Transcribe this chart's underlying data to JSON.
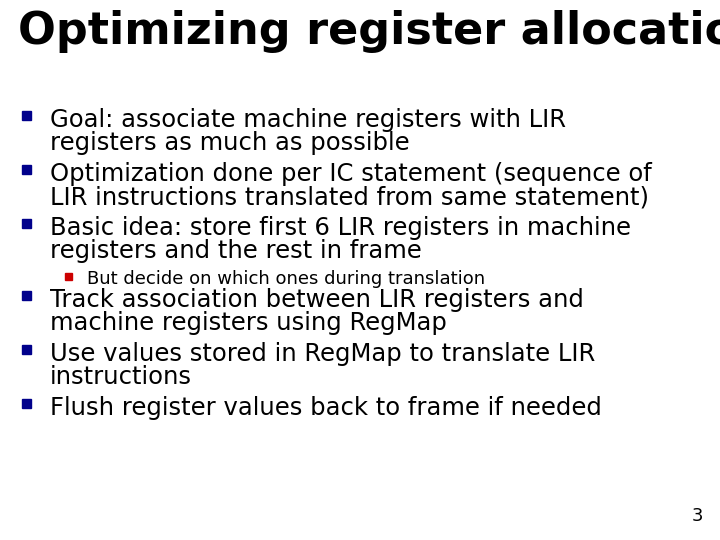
{
  "title": "Optimizing register allocation",
  "title_fontsize": 32,
  "title_color": "#000000",
  "background_color": "#ffffff",
  "slide_number": "3",
  "bullet_color": "#00008B",
  "sub_bullet_color": "#CC0000",
  "text_color": "#000000",
  "bullets": [
    {
      "level": 1,
      "lines": [
        "Goal: associate machine registers with LIR",
        "registers as much as possible"
      ],
      "fontsize": 17.5
    },
    {
      "level": 1,
      "lines": [
        "Optimization done per IC statement (sequence of",
        "LIR instructions translated from same statement)"
      ],
      "fontsize": 17.5
    },
    {
      "level": 1,
      "lines": [
        "Basic idea: store first 6 LIR registers in machine",
        "registers and the rest in frame"
      ],
      "fontsize": 17.5
    },
    {
      "level": 2,
      "lines": [
        "But decide on which ones during translation"
      ],
      "fontsize": 13
    },
    {
      "level": 1,
      "lines": [
        "Track association between LIR registers and",
        "machine registers using RegMap"
      ],
      "fontsize": 17.5
    },
    {
      "level": 1,
      "lines": [
        "Use values stored in RegMap to translate LIR",
        "instructions"
      ],
      "fontsize": 17.5
    },
    {
      "level": 1,
      "lines": [
        "Flush register values back to frame if needed"
      ],
      "fontsize": 17.5
    }
  ]
}
